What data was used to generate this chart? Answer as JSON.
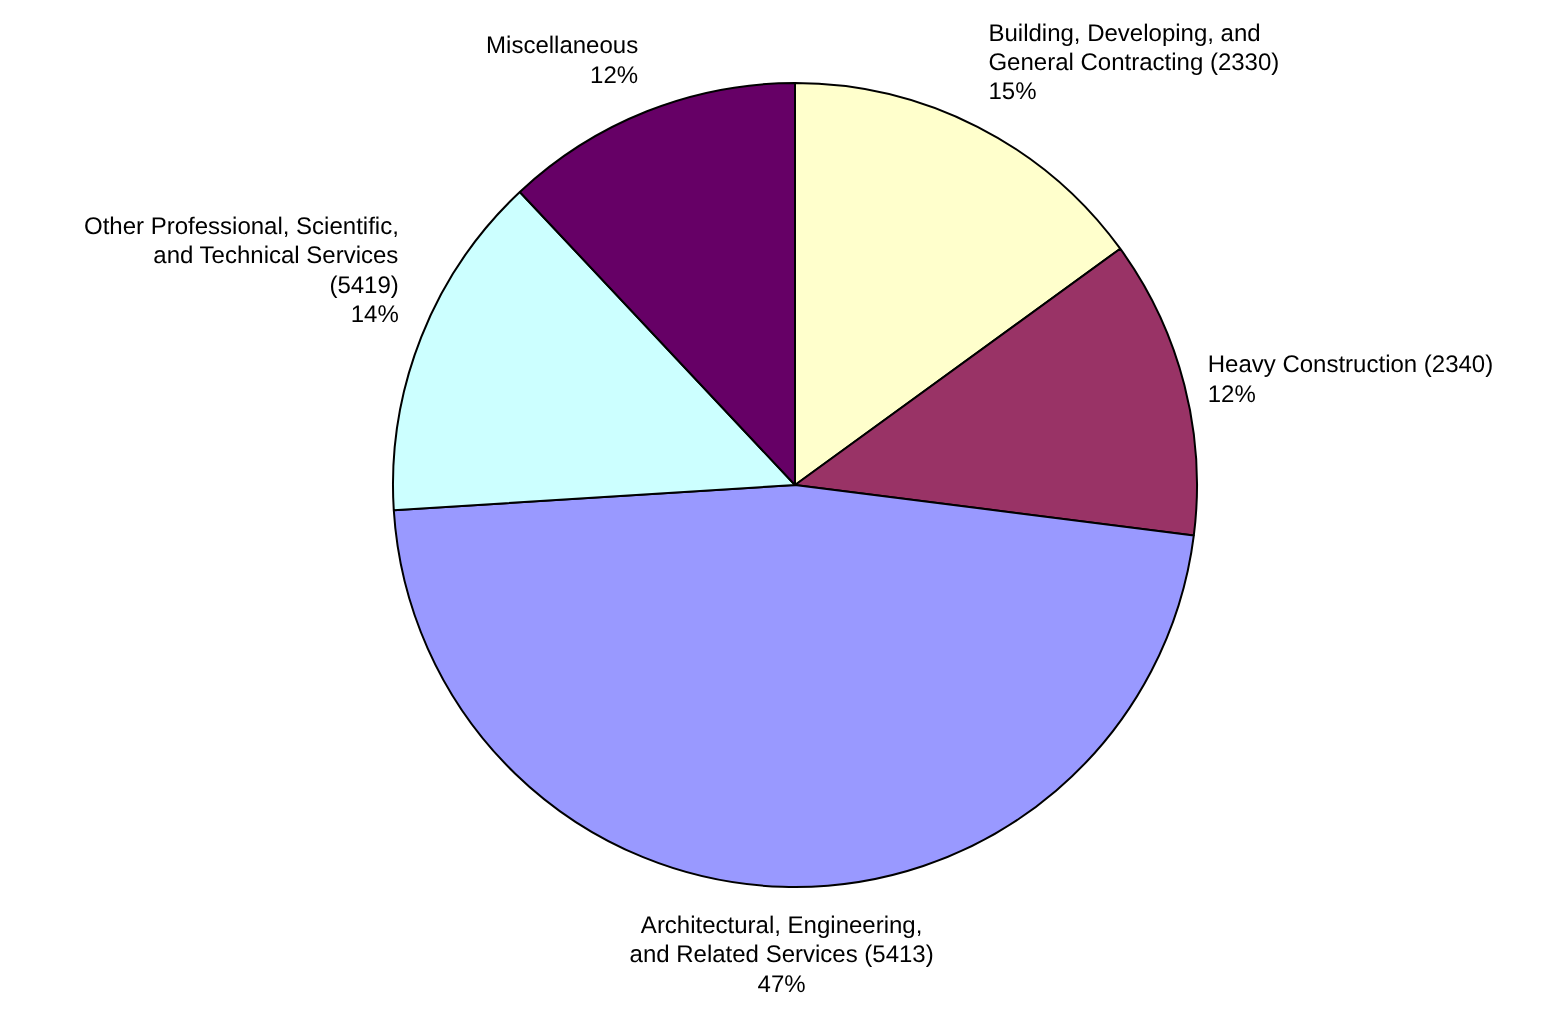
{
  "chart_data": {
    "type": "pie",
    "categories": [
      "Building, Developing, and\nGeneral Contracting (2330)",
      "Heavy Construction (2340)",
      "Architectural, Engineering,\nand Related Services (5413)",
      "Other Professional, Scientific,\nand Technical Services\n(5419)",
      "Miscellaneous"
    ],
    "values": [
      15,
      12,
      47,
      14,
      12
    ],
    "colors": [
      "#ffffcc",
      "#993366",
      "#9999ff",
      "#ccffff",
      "#660066"
    ],
    "value_labels": [
      "15%",
      "12%",
      "47%",
      "14%",
      "12%"
    ]
  }
}
